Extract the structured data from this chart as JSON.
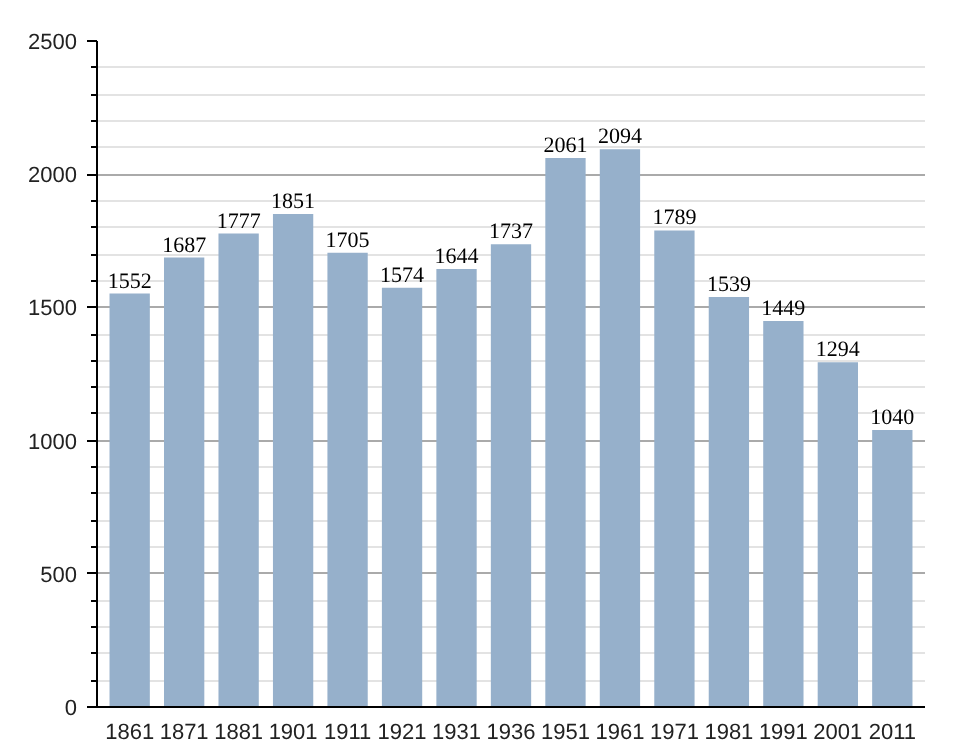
{
  "chart_data": {
    "type": "bar",
    "categories": [
      "1861",
      "1871",
      "1881",
      "1901",
      "1911",
      "1921",
      "1931",
      "1936",
      "1951",
      "1961",
      "1971",
      "1981",
      "1991",
      "2001",
      "2011"
    ],
    "values": [
      1552,
      1687,
      1777,
      1851,
      1705,
      1574,
      1644,
      1737,
      2061,
      2094,
      1789,
      1539,
      1449,
      1294,
      1040
    ],
    "color": "#96b0cb",
    "ylim": [
      0,
      2500
    ],
    "yticks": [
      0,
      {
        "value": 100,
        "label": null
      },
      {
        "value": 200,
        "label": null
      },
      {
        "value": 300,
        "label": null
      },
      {
        "value": 400,
        "label": null
      },
      500,
      {
        "value": 600,
        "label": null
      },
      {
        "value": 700,
        "label": null
      },
      {
        "value": 800,
        "label": null
      },
      {
        "value": 900,
        "label": null
      },
      1000,
      {
        "value": 1100,
        "label": null
      },
      {
        "value": 1200,
        "label": null
      },
      {
        "value": 1300,
        "label": null
      },
      {
        "value": 1400,
        "label": null
      },
      1500,
      {
        "value": 1600,
        "label": null
      },
      {
        "value": 1700,
        "label": null
      },
      {
        "value": 1800,
        "label": null
      },
      {
        "value": 1900,
        "label": null
      },
      2000,
      {
        "value": 2100,
        "label": null
      },
      {
        "value": 2200,
        "label": null
      },
      {
        "value": 2300,
        "label": null
      },
      {
        "value": 2400,
        "label": null
      },
      2500
    ],
    "grid": "y",
    "data_labels": true
  }
}
